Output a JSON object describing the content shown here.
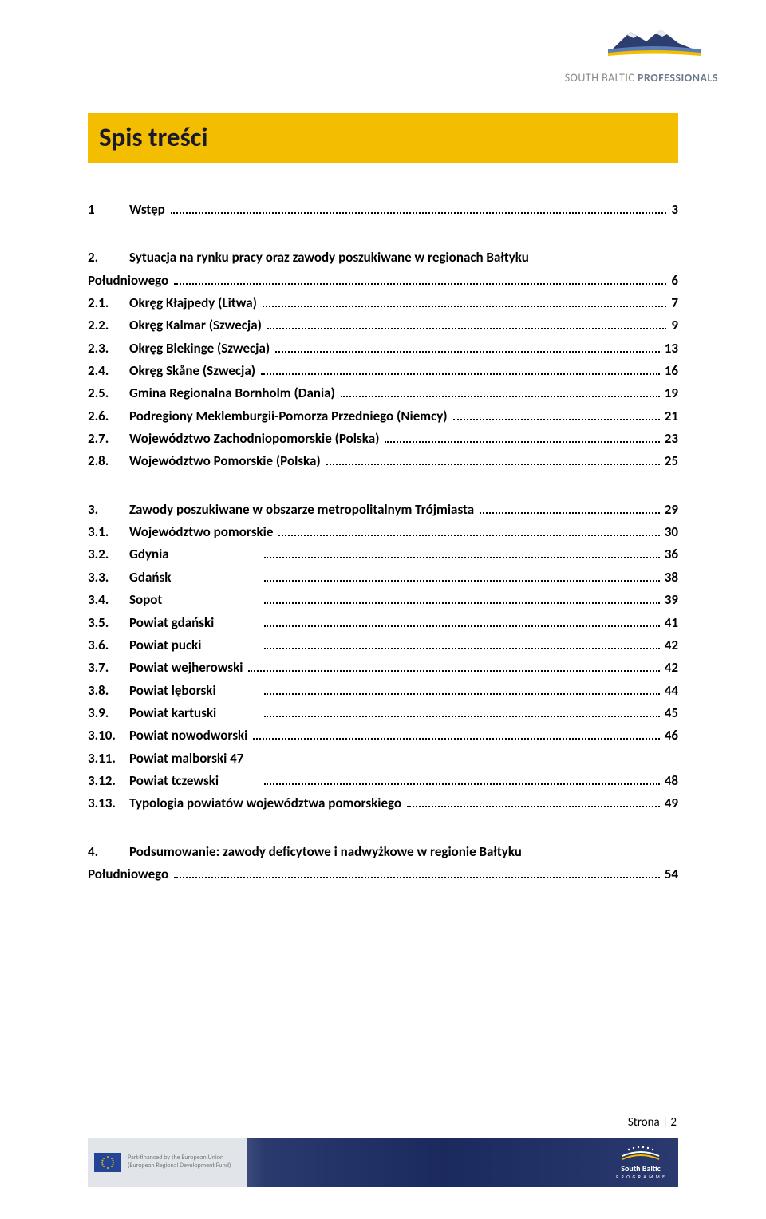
{
  "header": {
    "logo_text_gray": "SOUTH BALTIC",
    "logo_text_bold": "PROFESSIONALS",
    "mountain_fill": "#2c3e6e",
    "mountain_snow": "#e8ecef",
    "swoosh_blue": "#5a7db8",
    "swoosh_yellow": "#f3bd00"
  },
  "title": "Spis treści",
  "title_bg": "#f3bd00",
  "toc": [
    {
      "group": [
        {
          "num": "1",
          "label": "Wstęp",
          "page": "3"
        }
      ]
    },
    {
      "group": [
        {
          "num": "2.",
          "label_line1": "Sytuacja na rynku pracy oraz zawody poszukiwane  w regionach Bałtyku",
          "label": "Południowego",
          "page": "6"
        },
        {
          "num": "2.1.",
          "label": "Okręg Kłajpedy (Litwa)",
          "page": "7"
        },
        {
          "num": "2.2.",
          "label": "Okręg Kalmar (Szwecja)",
          "page": "9"
        },
        {
          "num": "2.3.",
          "label": "Okręg Blekinge (Szwecja)",
          "page": "13"
        },
        {
          "num": "2.4.",
          "label": "Okręg Skåne  (Szwecja)",
          "page": "16"
        },
        {
          "num": "2.5.",
          "label": "Gmina Regionalna Bornholm (Dania)",
          "page": "19"
        },
        {
          "num": "2.6.",
          "label": "Podregiony Meklemburgii-Pomorza Przedniego (Niemcy)",
          "page": "21"
        },
        {
          "num": "2.7.",
          "label": "Województwo Zachodniopomorskie (Polska)",
          "page": "23"
        },
        {
          "num": "2.8.",
          "label": "Województwo Pomorskie (Polska)",
          "page": "25"
        }
      ]
    },
    {
      "group": [
        {
          "num": "3.",
          "label": "Zawody poszukiwane w obszarze metropolitalnym Trójmiasta",
          "page": "29"
        },
        {
          "num": "3.1.",
          "label": "Województwo pomorskie",
          "page": "30"
        },
        {
          "num": "3.2.",
          "label": "Gdynia",
          "page": "36",
          "pad": true
        },
        {
          "num": "3.3.",
          "label": "Gdańsk",
          "page": "38",
          "pad": true
        },
        {
          "num": "3.4.",
          "label": "Sopot",
          "page": "39",
          "pad": true
        },
        {
          "num": "3.5.",
          "label": "Powiat gdański",
          "page": "41",
          "pad": true
        },
        {
          "num": "3.6.",
          "label": "Powiat pucki",
          "page": "42",
          "pad": true
        },
        {
          "num": "3.7.",
          "label": "Powiat wejherowski",
          "page": "42"
        },
        {
          "num": "3.8.",
          "label": "Powiat lęborski",
          "page": "44",
          "pad": true
        },
        {
          "num": "3.9.",
          "label": "Powiat kartuski",
          "page": "45",
          "pad": true
        },
        {
          "num": "3.10.",
          "label": "Powiat nowodworski",
          "page": "46"
        },
        {
          "num": "3.11.",
          "label": "Powiat malborski 47",
          "nopage": true
        },
        {
          "num": "3.12.",
          "label": "Powiat tczewski",
          "page": "48",
          "pad": true
        },
        {
          "num": "3.13.",
          "label": "Typologia powiatów województwa pomorskiego",
          "page": "49"
        }
      ]
    },
    {
      "group": [
        {
          "num": "4.",
          "label_line1": "Podsumowanie: zawody deficytowe  i nadwyżkowe w regionie Bałtyku",
          "label": "Południowego",
          "page": "54"
        }
      ]
    }
  ],
  "footer": {
    "eu_line1": "Part-financed by the European Union",
    "eu_line2": "(European Regional Development Fund)",
    "sb_line1": "South Baltic",
    "sb_line2": "P R O G R A M M E",
    "page_label": "Strona | 2"
  }
}
